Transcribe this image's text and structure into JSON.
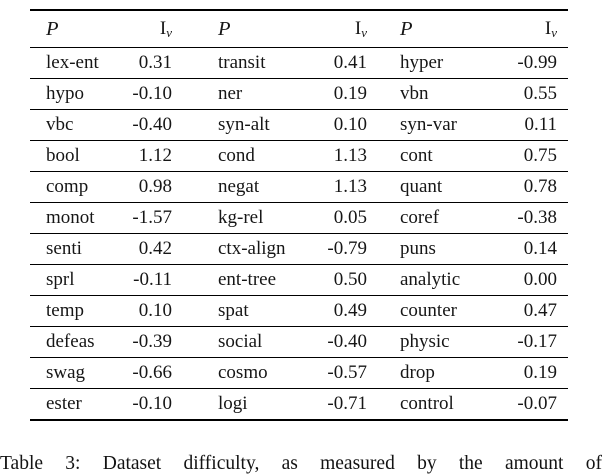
{
  "table": {
    "column_group_count": 3,
    "header": {
      "phenomenon_label": "P",
      "iv_main": "I",
      "iv_sub": "v"
    },
    "rows": [
      [
        "lex-ent",
        "0.31",
        "transit",
        "0.41",
        "hyper",
        "-0.99"
      ],
      [
        "hypo",
        "-0.10",
        "ner",
        "0.19",
        "vbn",
        "0.55"
      ],
      [
        "vbc",
        "-0.40",
        "syn-alt",
        "0.10",
        "syn-var",
        "0.11"
      ],
      [
        "bool",
        "1.12",
        "cond",
        "1.13",
        "cont",
        "0.75"
      ],
      [
        "comp",
        "0.98",
        "negat",
        "1.13",
        "quant",
        "0.78"
      ],
      [
        "monot",
        "-1.57",
        "kg-rel",
        "0.05",
        "coref",
        "-0.38"
      ],
      [
        "senti",
        "0.42",
        "ctx-align",
        "-0.79",
        "puns",
        "0.14"
      ],
      [
        "sprl",
        "-0.11",
        "ent-tree",
        "0.50",
        "analytic",
        "0.00"
      ],
      [
        "temp",
        "0.10",
        "spat",
        "0.49",
        "counter",
        "0.47"
      ],
      [
        "defeas",
        "-0.39",
        "social",
        "-0.40",
        "physic",
        "-0.17"
      ],
      [
        "swag",
        "-0.66",
        "cosmo",
        "-0.57",
        "drop",
        "0.19"
      ],
      [
        "ester",
        "-0.10",
        "logi",
        "-0.71",
        "control",
        "-0.07"
      ]
    ]
  },
  "caption": {
    "text": "Table 3: Dataset difficulty, as measured by the amount of"
  }
}
